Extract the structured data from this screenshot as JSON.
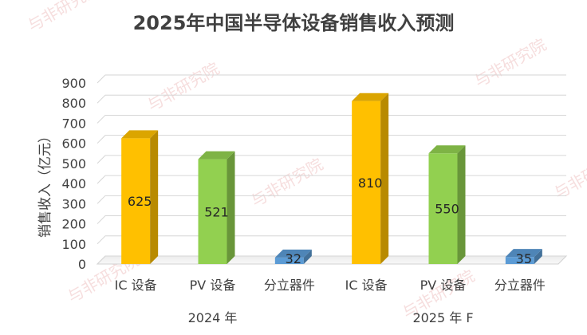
{
  "watermark": "与非研究院",
  "chart_data": {
    "type": "bar",
    "title": "2025年中国半导体设备销售收入预测",
    "ylabel": "销售收入（亿元）",
    "ylim": [
      0,
      900
    ],
    "yticks": [
      "0",
      "100",
      "200",
      "300",
      "400",
      "500",
      "600",
      "700",
      "800",
      "900"
    ],
    "grid": true,
    "groups": [
      {
        "label": "2024 年",
        "items": [
          {
            "category": "IC 设备",
            "value": 625,
            "label": "625",
            "color": "#FFC000"
          },
          {
            "category": "PV 设备",
            "value": 521,
            "label": "521",
            "color": "#92D050"
          },
          {
            "category": "分立器件",
            "value": 32,
            "label": "32",
            "color": "#5B9BD5"
          }
        ]
      },
      {
        "label": "2025 年 F",
        "items": [
          {
            "category": "IC 设备",
            "value": 810,
            "label": "810",
            "color": "#FFC000"
          },
          {
            "category": "PV 设备",
            "value": 550,
            "label": "550",
            "color": "#92D050"
          },
          {
            "category": "分立器件",
            "value": 35,
            "label": "35",
            "color": "#5B9BD5"
          }
        ]
      }
    ]
  }
}
